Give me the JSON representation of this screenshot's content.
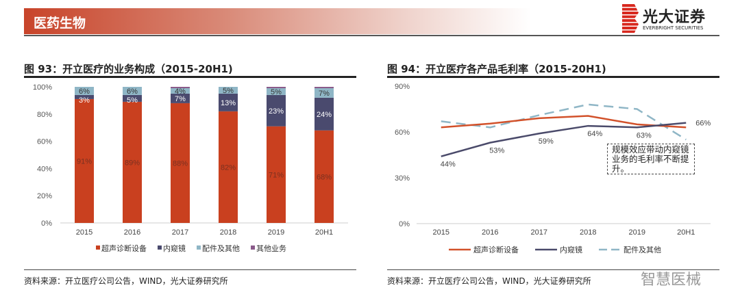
{
  "header": {
    "section": "医药生物",
    "logo_cn": "光大证券",
    "logo_en": "EVERBRIGHT SECURITIES"
  },
  "watermark": "智慧医械",
  "chart_data": [
    {
      "type": "bar",
      "stacked": true,
      "title": "图 93：开立医疗的业务构成（2015-20H1)",
      "categories": [
        "2015",
        "2016",
        "2017",
        "2018",
        "2019",
        "20H1"
      ],
      "yticks": [
        "0%",
        "20%",
        "40%",
        "60%",
        "80%",
        "100%"
      ],
      "ylim": [
        0,
        100
      ],
      "series": [
        {
          "name": "超声诊断设备",
          "color": "#c9401f",
          "values": [
            91,
            89,
            88,
            82,
            71,
            68
          ],
          "labels": [
            "91%",
            "89%",
            "88%",
            "82%",
            "71%",
            "68%"
          ]
        },
        {
          "name": "内窥镜",
          "color": "#4a4a6e",
          "values": [
            3,
            5,
            7,
            13,
            23,
            24
          ],
          "labels": [
            "3%",
            "5%",
            "7%",
            "13%",
            "23%",
            "24%"
          ]
        },
        {
          "name": "配件及其他",
          "color": "#8fb6c6",
          "values": [
            6,
            6,
            4,
            5,
            5,
            7
          ],
          "labels": [
            "6%",
            "6%",
            "4%",
            "5%",
            "5%",
            "7%"
          ]
        },
        {
          "name": "其他业务",
          "color": "#8a5a8a",
          "values": [
            0,
            0,
            1,
            0,
            1,
            1
          ]
        }
      ],
      "legend": "bottom",
      "source": "资料来源：开立医疗公司公告，WIND，光大证券研究所"
    },
    {
      "type": "line",
      "title": "图 94：开立医疗各产品毛利率（2015-20H1)",
      "categories": [
        "2015",
        "2016",
        "2017",
        "2018",
        "2019",
        "20H1"
      ],
      "yticks": [
        "0%",
        "30%",
        "60%",
        "90%"
      ],
      "ylim": [
        0,
        90
      ],
      "series": [
        {
          "name": "超声诊断设备",
          "color": "#d2512a",
          "dash": false,
          "values": [
            63,
            65.5,
            69,
            70.5,
            65,
            63
          ]
        },
        {
          "name": "内窥镜",
          "color": "#4a4a6a",
          "dash": false,
          "values": [
            44,
            53,
            59,
            64,
            63,
            66
          ],
          "labels": [
            "44%",
            "53%",
            "59%",
            "64%",
            "63%",
            "66%"
          ]
        },
        {
          "name": "配件及其他",
          "color": "#8fb6c6",
          "dash": true,
          "values": [
            67,
            63,
            71,
            78,
            75,
            55
          ]
        }
      ],
      "annotation": "规模效应带动内窥镜业务的毛利率不断提升。",
      "legend": "bottom",
      "source": "资料来源：开立医疗公司公告，WIND，光大证券研究所"
    }
  ]
}
